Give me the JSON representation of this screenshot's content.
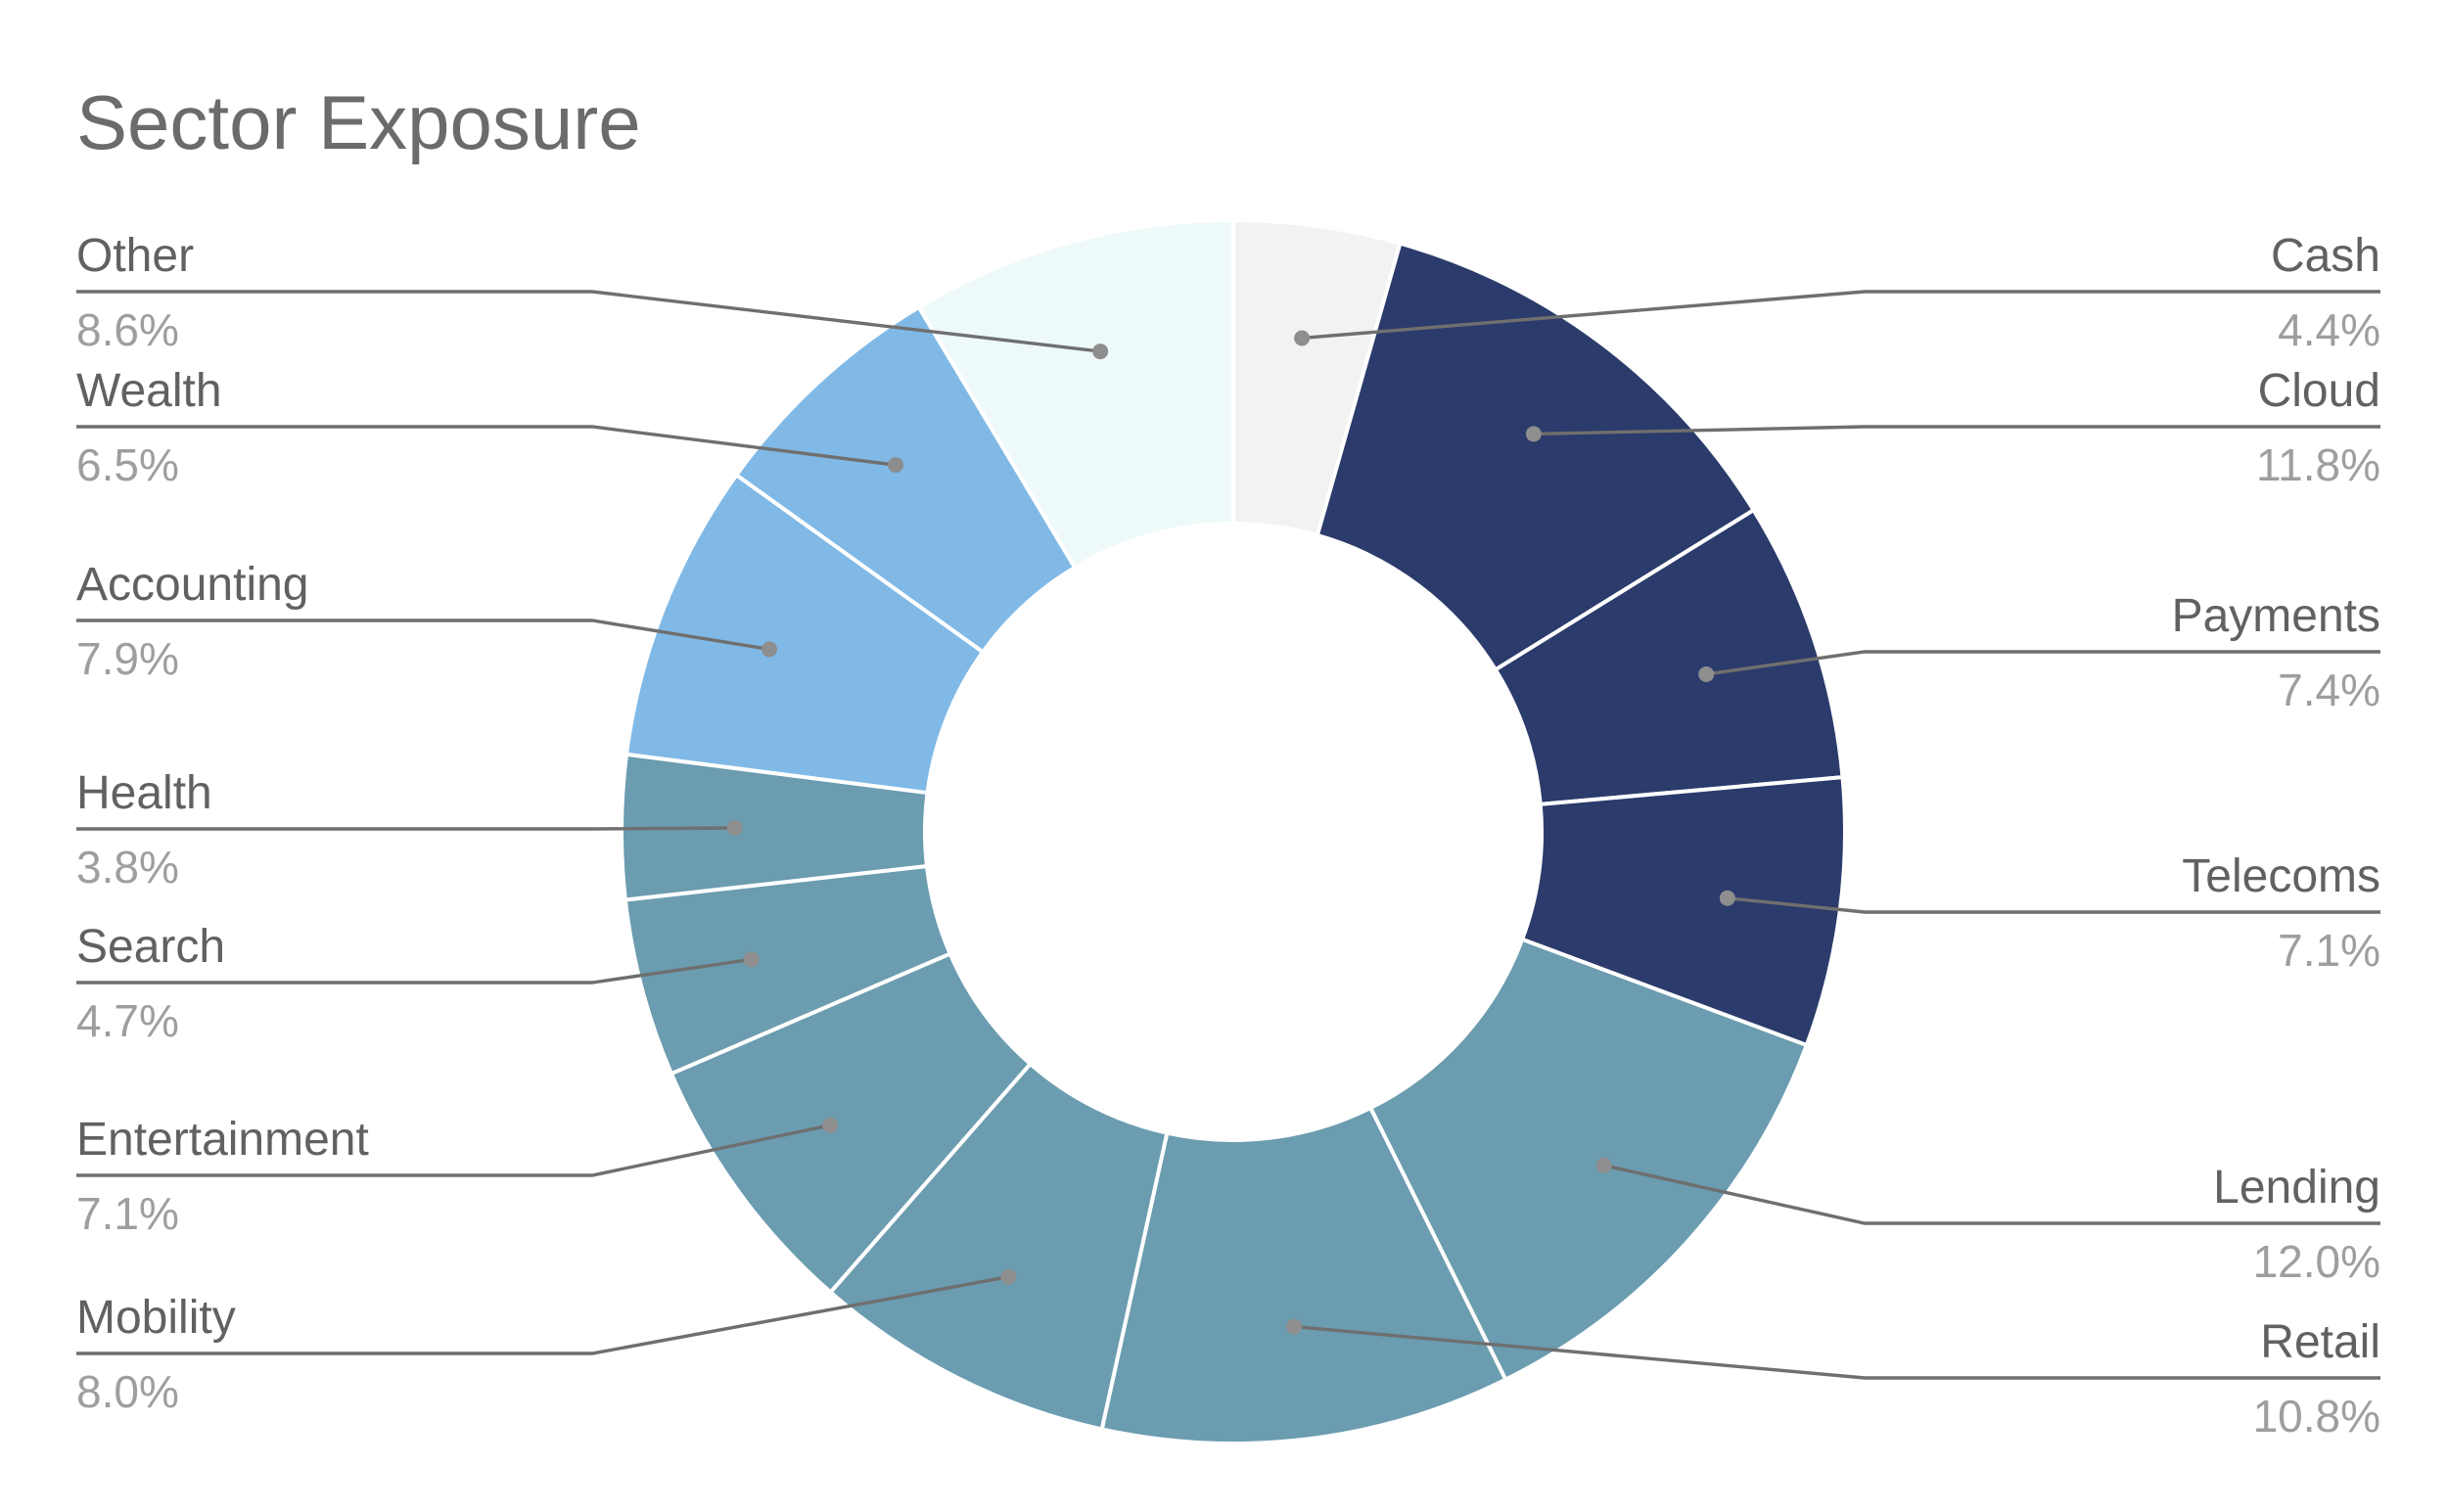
{
  "chart_data": {
    "type": "pie",
    "donut": true,
    "title": "Sector Exposure",
    "legend": "none",
    "direction": "clockwise",
    "slices": [
      {
        "label": "Cash",
        "value": 4.4,
        "display": "4.4%",
        "color": "#f2f2f2",
        "side": "right"
      },
      {
        "label": "Cloud",
        "value": 11.8,
        "display": "11.8%",
        "color": "#2b3b6b",
        "side": "right"
      },
      {
        "label": "Payments",
        "value": 7.4,
        "display": "7.4%",
        "color": "#2b3b6b",
        "side": "right"
      },
      {
        "label": "Telecoms",
        "value": 7.1,
        "display": "7.1%",
        "color": "#2b3b6b",
        "side": "right"
      },
      {
        "label": "Lending",
        "value": 12.0,
        "display": "12.0%",
        "color": "#6b9cb0",
        "side": "right"
      },
      {
        "label": "Retail",
        "value": 10.8,
        "display": "10.8%",
        "color": "#6b9cb0",
        "side": "right"
      },
      {
        "label": "Mobility",
        "value": 8.0,
        "display": "8.0%",
        "color": "#6b9cb0",
        "side": "left"
      },
      {
        "label": "Entertainment",
        "value": 7.1,
        "display": "7.1%",
        "color": "#6b9cb0",
        "side": "left"
      },
      {
        "label": "Search",
        "value": 4.7,
        "display": "4.7%",
        "color": "#6b9cb0",
        "side": "left"
      },
      {
        "label": "Health",
        "value": 3.8,
        "display": "3.8%",
        "color": "#6b9cb0",
        "side": "left"
      },
      {
        "label": "Accounting",
        "value": 7.9,
        "display": "7.9%",
        "color": "#80b9e6",
        "side": "left"
      },
      {
        "label": "Wealth",
        "value": 6.5,
        "display": "6.5%",
        "color": "#80b9e6",
        "side": "left"
      },
      {
        "label": "Other",
        "value": 8.6,
        "display": "8.6%",
        "color": "#eef9fa",
        "side": "left"
      }
    ]
  }
}
